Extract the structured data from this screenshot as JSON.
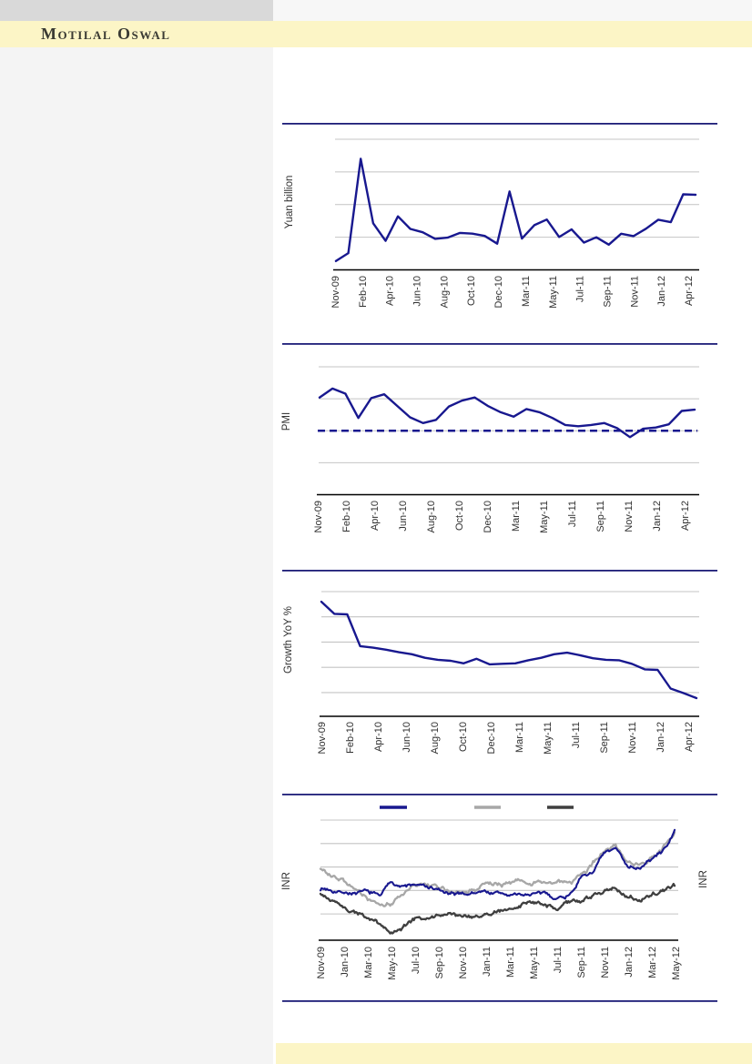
{
  "header": {
    "brand": "Motilal Oswal"
  },
  "colors": {
    "accent_navy": "#18188f",
    "divider_navy": "#1d1d78",
    "series_gray": "#a7a7a7",
    "series_dark": "#3f3f3f",
    "gridline_gray": "#c4c4c4",
    "band_yellow": "#fcf5c6",
    "sidebar_gray": "#f4f4f4",
    "topbar_gray": "#d9d9d9",
    "axis_black": "#000000",
    "tick_text": "#303030"
  },
  "chart_data": [
    {
      "type": "line",
      "title": "",
      "ylabel": "Yuan billion",
      "xlabel": "",
      "categories": [
        "Nov-09",
        "Dec-09",
        "Jan-10",
        "Feb-10",
        "Mar-10",
        "Apr-10",
        "May-10",
        "Jun-10",
        "Jul-10",
        "Aug-10",
        "Sep-10",
        "Oct-10",
        "Nov-10",
        "Dec-10",
        "Jan-11",
        "Feb-11",
        "Mar-11",
        "Apr-11",
        "May-11",
        "Jun-11",
        "Jul-11",
        "Aug-11",
        "Sep-11",
        "Oct-11",
        "Nov-11",
        "Dec-11",
        "Jan-12",
        "Feb-12",
        "Mar-12",
        "Apr-12"
      ],
      "x_tick_labels": [
        "Nov-09",
        "Feb-10",
        "Apr-10",
        "Jun-10",
        "Aug-10",
        "Oct-10",
        "Dec-10",
        "Mar-11",
        "May-11",
        "Jul-11",
        "Sep-11",
        "Nov-11",
        "Jan-12",
        "Apr-12"
      ],
      "series": [
        {
          "name": "navy",
          "color": "#18188f",
          "values": [
            295,
            380,
            1390,
            700,
            511,
            774,
            639,
            603,
            533,
            545,
            596,
            588,
            564,
            481,
            1040,
            536,
            679,
            740,
            552,
            634,
            493,
            549,
            470,
            587,
            562,
            641,
            738,
            711,
            1010,
            1005
          ]
        }
      ],
      "ylim": [
        200,
        1600
      ],
      "gridlines": [
        550,
        900,
        1250,
        1600
      ],
      "grid": true,
      "legend_position": "none"
    },
    {
      "type": "line",
      "title": "",
      "ylabel": "PMI",
      "xlabel": "",
      "categories": [
        "Nov-09",
        "Dec-09",
        "Jan-10",
        "Feb-10",
        "Mar-10",
        "Apr-10",
        "May-10",
        "Jun-10",
        "Jul-10",
        "Aug-10",
        "Sep-10",
        "Oct-10",
        "Nov-10",
        "Dec-10",
        "Jan-11",
        "Feb-11",
        "Mar-11",
        "Apr-11",
        "May-11",
        "Jun-11",
        "Jul-11",
        "Aug-11",
        "Sep-11",
        "Oct-11",
        "Nov-11",
        "Dec-11",
        "Jan-12",
        "Feb-12",
        "Mar-12",
        "Apr-12"
      ],
      "x_tick_labels": [
        "Nov-09",
        "Feb-10",
        "Apr-10",
        "Jun-10",
        "Aug-10",
        "Oct-10",
        "Dec-10",
        "Mar-11",
        "May-11",
        "Jul-11",
        "Sep-11",
        "Nov-11",
        "Jan-12",
        "Apr-12"
      ],
      "series": [
        {
          "name": "navy",
          "color": "#18188f",
          "values": [
            55.2,
            56.6,
            55.8,
            52.0,
            55.1,
            55.7,
            53.9,
            52.1,
            51.2,
            51.7,
            53.8,
            54.7,
            55.2,
            53.9,
            52.9,
            52.2,
            53.4,
            52.9,
            52.0,
            50.9,
            50.7,
            50.9,
            51.2,
            50.4,
            49.0,
            50.3,
            50.5,
            51.0,
            53.1,
            53.3
          ]
        }
      ],
      "reference_line": {
        "value": 50,
        "style": "dashed",
        "color": "#18188f"
      },
      "ylim": [
        40,
        60
      ],
      "gridlines": [
        45,
        50,
        55,
        60
      ],
      "grid": true,
      "legend_position": "none"
    },
    {
      "type": "line",
      "title": "",
      "ylabel": "Growth YoY %",
      "xlabel": "",
      "categories": [
        "Nov-09",
        "Dec-09",
        "Jan-10",
        "Feb-10",
        "Mar-10",
        "Apr-10",
        "May-10",
        "Jun-10",
        "Jul-10",
        "Aug-10",
        "Sep-10",
        "Oct-10",
        "Nov-10",
        "Dec-10",
        "Jan-11",
        "Feb-11",
        "Mar-11",
        "Apr-11",
        "May-11",
        "Jun-11",
        "Jul-11",
        "Aug-11",
        "Sep-11",
        "Oct-11",
        "Nov-11",
        "Dec-11",
        "Jan-12",
        "Feb-12",
        "Mar-12",
        "Apr-12"
      ],
      "x_tick_labels": [
        "Nov-09",
        "Feb-10",
        "Apr-10",
        "Jun-10",
        "Aug-10",
        "Oct-10",
        "Dec-10",
        "Mar-11",
        "May-11",
        "Jul-11",
        "Sep-11",
        "Nov-11",
        "Jan-12",
        "Apr-12"
      ],
      "series": [
        {
          "name": "navy",
          "color": "#18188f",
          "values": [
            28.0,
            25.6,
            25.5,
            19.2,
            18.9,
            18.5,
            18.0,
            17.6,
            16.9,
            16.5,
            16.3,
            15.8,
            16.7,
            15.6,
            15.7,
            15.8,
            16.4,
            16.9,
            17.6,
            17.9,
            17.4,
            16.8,
            16.5,
            16.4,
            15.7,
            14.6,
            14.5,
            10.8,
            9.9,
            8.9
          ]
        }
      ],
      "ylim": [
        5.3,
        30
      ],
      "gridlines": [
        10,
        15,
        20,
        25,
        30
      ],
      "grid": true,
      "legend_position": "none"
    },
    {
      "type": "line",
      "title": "",
      "ylabel": "INR",
      "ylabel_right": "INR",
      "xlabel": "",
      "categories": [
        "Nov-09",
        "Dec-09",
        "Jan-10",
        "Feb-10",
        "Mar-10",
        "Apr-10",
        "May-10",
        "Jun-10",
        "Jul-10",
        "Aug-10",
        "Sep-10",
        "Oct-10",
        "Nov-10",
        "Dec-10",
        "Jan-11",
        "Feb-11",
        "Mar-11",
        "Apr-11",
        "May-11",
        "Jun-11",
        "Jul-11",
        "Aug-11",
        "Sep-11",
        "Oct-11",
        "Nov-11",
        "Dec-11",
        "Jan-12",
        "Feb-12",
        "Mar-12",
        "Apr-12",
        "May-12"
      ],
      "x_tick_labels": [
        "Nov-09",
        "Jan-10",
        "Mar-10",
        "May-10",
        "Jul-10",
        "Sep-10",
        "Nov-10",
        "Jan-11",
        "Mar-11",
        "May-11",
        "Jul-11",
        "Sep-11",
        "Nov-11",
        "Jan-12",
        "Mar-12",
        "May-12"
      ],
      "series": [
        {
          "name": "navy",
          "color": "#18188f",
          "daily_noise": 0.55,
          "values": [
            45.4,
            45.2,
            44.8,
            44.4,
            44.6,
            43.9,
            47.0,
            45.8,
            46.3,
            45.7,
            45.1,
            43.9,
            44.3,
            44.5,
            44.8,
            44.4,
            44.1,
            43.9,
            44.4,
            44.1,
            43.5,
            44.0,
            47.6,
            48.9,
            52.7,
            53.7,
            50.5,
            49.9,
            51.4,
            53.4,
            57.5
          ]
        },
        {
          "name": "gray",
          "color": "#a7a7a7",
          "daily_noise": 0.55,
          "values": [
            49.5,
            48.2,
            47.0,
            45.0,
            43.3,
            42.8,
            42.4,
            44.2,
            46.1,
            45.8,
            45.6,
            44.6,
            44.3,
            45.6,
            46.5,
            46.2,
            46.6,
            46.9,
            46.6,
            46.8,
            47.2,
            46.2,
            48.1,
            50.4,
            53.9,
            54.6,
            51.4,
            50.8,
            52.0,
            54.0,
            57.0
          ]
        },
        {
          "name": "dark-gray",
          "color": "#3f3f3f",
          "daily_noise": 0.55,
          "values": [
            44.2,
            42.7,
            41.1,
            40.2,
            39.2,
            37.8,
            35.9,
            37.2,
            39.2,
            38.8,
            39.8,
            40.2,
            39.2,
            38.8,
            39.8,
            40.7,
            41.1,
            41.7,
            42.1,
            41.7,
            40.7,
            42.1,
            42.7,
            43.6,
            45.0,
            45.4,
            43.6,
            43.1,
            44.2,
            45.0,
            45.6
          ]
        }
      ],
      "ylim": [
        34.4,
        60
      ],
      "gridlines": [
        40,
        45,
        50,
        55,
        60
      ],
      "grid": true,
      "legend_position": "top",
      "legend_labels_visible": false
    }
  ]
}
